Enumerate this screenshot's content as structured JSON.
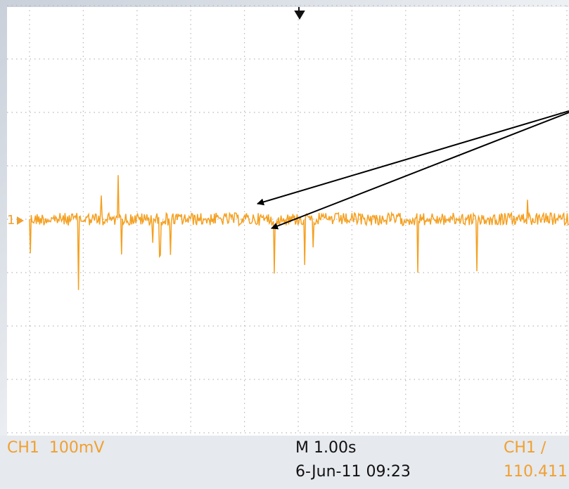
{
  "channel_marker": "1",
  "status": {
    "channel_scale": "CH1  100mV",
    "timebase": "M 1.00s",
    "timestamp": "6-Jun-11 09:23",
    "trigger": "CH1 ∕",
    "trigger_value": "110.411"
  }
}
